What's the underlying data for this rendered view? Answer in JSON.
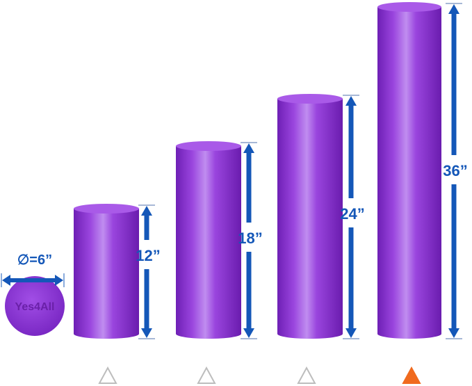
{
  "colors": {
    "roller": "#8b34d2",
    "arrow": "#1457b8",
    "selected": "#f06a1e",
    "unselected": "#bdbdbd"
  },
  "diameter_label": "∅=6”",
  "logo_text": "Yes4All",
  "rollers": [
    {
      "length_label": "12”",
      "selected": false
    },
    {
      "length_label": "18”",
      "selected": false
    },
    {
      "length_label": "24”",
      "selected": false
    },
    {
      "length_label": "36”",
      "selected": true
    }
  ]
}
